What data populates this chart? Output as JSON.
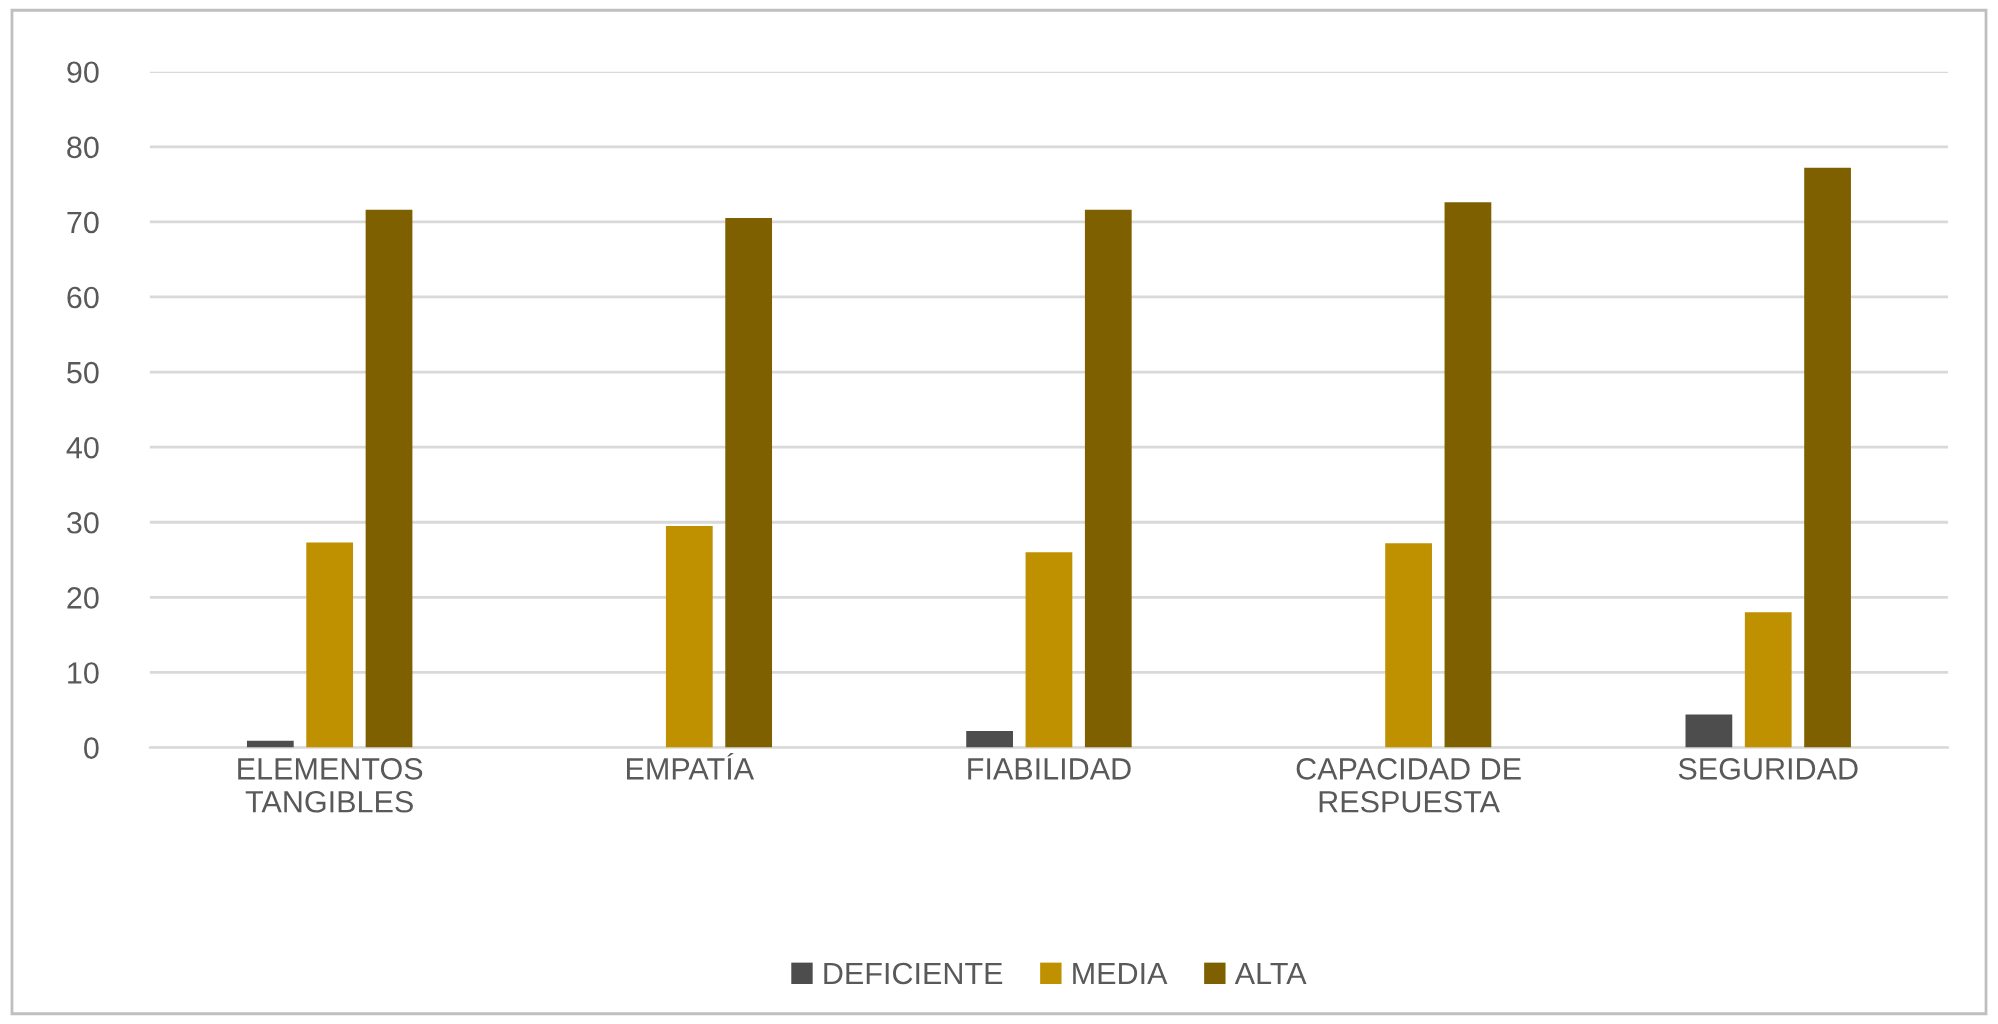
{
  "chart_data": {
    "type": "bar",
    "categories": [
      "ELEMENTOS\nTANGIBLES",
      "EMPATÍA",
      "FIABILIDAD",
      "CAPACIDAD DE\nRESPUESTA",
      "SEGURIDAD"
    ],
    "series": [
      {
        "name": "DEFICIENTE",
        "color": "#4d4d4d",
        "values": [
          0.9,
          0,
          2.2,
          0,
          4.4
        ]
      },
      {
        "name": "MEDIA",
        "color": "#bf9000",
        "values": [
          27.3,
          29.5,
          26.0,
          27.2,
          18.0
        ]
      },
      {
        "name": "ALTA",
        "color": "#7f6000",
        "values": [
          71.6,
          70.5,
          71.6,
          72.6,
          77.2
        ]
      }
    ],
    "ylim": [
      0,
      90
    ],
    "yticks": [
      0,
      10,
      20,
      30,
      40,
      50,
      60,
      70,
      80,
      90
    ],
    "grid": "y",
    "legend": "bottom"
  }
}
